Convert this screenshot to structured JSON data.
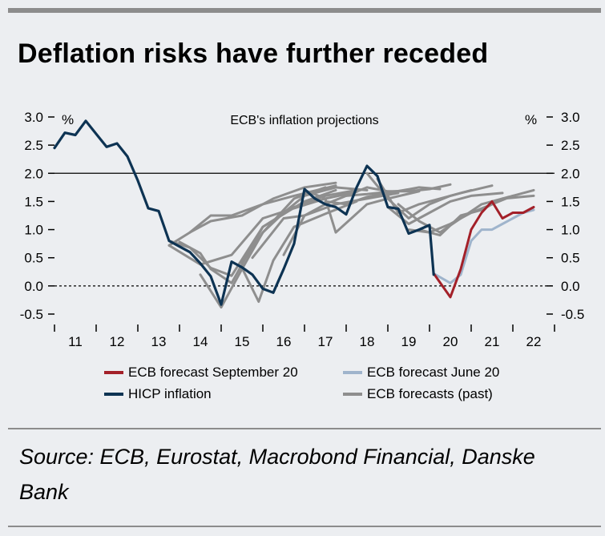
{
  "header": {
    "title": "Deflation risks have further receded"
  },
  "footer": {
    "source": "Source: ECB, Eurostat, Macrobond Financial, Danske Bank"
  },
  "chart_data": {
    "type": "line",
    "title": "ECB's inflation projections",
    "ylabel_left": "%",
    "ylabel_right": "%",
    "ylim": [
      -0.5,
      3.0
    ],
    "yticks": [
      3.0,
      2.5,
      2.0,
      1.5,
      1.0,
      0.5,
      0.0,
      -0.5
    ],
    "ytick_labels": [
      "3.0",
      "2.5",
      "2.0",
      "1.5",
      "1.0",
      "0.5",
      "0.0",
      "-0.5"
    ],
    "xlim": [
      2011.0,
      2023.0
    ],
    "xtick_labels": [
      "11",
      "12",
      "13",
      "14",
      "15",
      "16",
      "17",
      "18",
      "19",
      "20",
      "21",
      "22"
    ],
    "reference_lines": [
      {
        "name": "target-line",
        "y": 2.0,
        "style": "solid"
      },
      {
        "name": "zero-line",
        "y": 0.0,
        "style": "dashed"
      }
    ],
    "colors": {
      "hicp": "#0d3353",
      "sep20": "#a32029",
      "jun20": "#9fb4cc",
      "past": "#8e8e8e",
      "axis": "#000000"
    },
    "legend": [
      {
        "label": "ECB forecast September 20",
        "color_key": "sep20"
      },
      {
        "label": "ECB forecast June 20",
        "color_key": "jun20"
      },
      {
        "label": "HICP inflation",
        "color_key": "hicp"
      },
      {
        "label": "ECB forecasts (past)",
        "color_key": "past"
      }
    ],
    "series": [
      {
        "name": "HICP inflation",
        "role": "hicp",
        "x": [
          2011.0,
          2011.25,
          2011.5,
          2011.75,
          2012.0,
          2012.25,
          2012.5,
          2012.75,
          2013.0,
          2013.25,
          2013.5,
          2013.75,
          2014.0,
          2014.25,
          2014.5,
          2014.75,
          2015.0,
          2015.25,
          2015.5,
          2015.75,
          2016.0,
          2016.25,
          2016.5,
          2016.75,
          2017.0,
          2017.25,
          2017.5,
          2017.75,
          2018.0,
          2018.25,
          2018.5,
          2018.75,
          2019.0,
          2019.25,
          2019.5,
          2019.75,
          2020.0,
          2020.1
        ],
        "y": [
          2.45,
          2.72,
          2.68,
          2.93,
          2.7,
          2.47,
          2.53,
          2.3,
          1.87,
          1.38,
          1.33,
          0.8,
          0.7,
          0.6,
          0.4,
          0.17,
          -0.33,
          0.43,
          0.33,
          0.2,
          -0.05,
          -0.12,
          0.3,
          0.75,
          1.72,
          1.55,
          1.45,
          1.4,
          1.27,
          1.75,
          2.13,
          1.95,
          1.4,
          1.37,
          0.93,
          1.0,
          1.08,
          0.2
        ]
      },
      {
        "name": "ECB forecast (past) 1",
        "role": "past",
        "x": [
          2013.75,
          2014.25,
          2014.75,
          2015.25,
          2016.0,
          2016.75,
          2017.5,
          2018.25
        ],
        "y": [
          0.8,
          0.68,
          0.32,
          0.18,
          1.05,
          1.4,
          1.6,
          1.7
        ]
      },
      {
        "name": "ECB forecast (past) 2",
        "role": "past",
        "x": [
          2013.75,
          2014.5,
          2015.25,
          2016.0,
          2016.75,
          2017.5,
          2018.25
        ],
        "y": [
          0.72,
          0.38,
          0.55,
          1.2,
          1.38,
          1.55,
          1.67
        ]
      },
      {
        "name": "ECB forecast (past) 3",
        "role": "past",
        "x": [
          2014.0,
          2014.5,
          2014.75,
          2015.25,
          2016.0,
          2017.0,
          2017.75
        ],
        "y": [
          0.78,
          0.58,
          0.3,
          0.05,
          1.05,
          1.5,
          1.7
        ]
      },
      {
        "name": "ECB forecast (past) 4",
        "role": "past",
        "x": [
          2014.5,
          2015.0,
          2015.5,
          2016.0,
          2016.75,
          2017.5
        ],
        "y": [
          0.2,
          -0.38,
          0.3,
          0.95,
          1.55,
          1.75
        ]
      },
      {
        "name": "ECB forecast (past) 5",
        "role": "past",
        "x": [
          2014.25,
          2014.75,
          2015.25,
          2016.0,
          2016.75,
          2017.75
        ],
        "y": [
          0.95,
          1.25,
          1.25,
          1.45,
          1.6,
          1.78
        ]
      },
      {
        "name": "ECB forecast (past) 6",
        "role": "past",
        "x": [
          2013.75,
          2014.25,
          2014.75,
          2015.5,
          2016.25,
          2017.0,
          2017.75
        ],
        "y": [
          0.72,
          0.95,
          1.15,
          1.25,
          1.55,
          1.75,
          1.83
        ]
      },
      {
        "name": "ECB forecast (past) 7",
        "role": "past",
        "x": [
          2015.5,
          2015.9,
          2016.25,
          2016.75,
          2017.5,
          2018.25
        ],
        "y": [
          0.32,
          -0.28,
          0.45,
          1.05,
          1.28,
          1.5
        ]
      },
      {
        "name": "ECB forecast (past) 8",
        "role": "past",
        "x": [
          2015.5,
          2016.0,
          2016.5,
          2017.0,
          2017.75,
          2018.5
        ],
        "y": [
          0.4,
          0.95,
          1.3,
          1.6,
          1.75,
          1.7
        ]
      },
      {
        "name": "ECB forecast (past) 9",
        "role": "past",
        "x": [
          2015.75,
          2016.5,
          2017.0,
          2017.75,
          2018.5,
          2019.25
        ],
        "y": [
          0.5,
          1.2,
          1.25,
          1.45,
          1.55,
          1.65
        ]
      },
      {
        "name": "ECB forecast (past) 10",
        "role": "past",
        "x": [
          2016.5,
          2017.0,
          2017.5,
          2018.0,
          2018.5,
          2019.0,
          2019.5
        ],
        "y": [
          0.55,
          1.25,
          1.45,
          1.6,
          1.63,
          1.67,
          1.7
        ]
      },
      {
        "name": "ECB forecast (past) 11",
        "role": "past",
        "x": [
          2017.0,
          2017.5,
          2017.75,
          2018.5,
          2019.0,
          2019.75
        ],
        "y": [
          1.7,
          1.55,
          0.95,
          1.45,
          1.55,
          1.68
        ]
      },
      {
        "name": "ECB forecast (past) 12",
        "role": "past",
        "x": [
          2017.5,
          2018.0,
          2018.5,
          2019.0,
          2019.75,
          2020.25
        ],
        "y": [
          1.5,
          1.45,
          1.58,
          1.65,
          1.75,
          1.72
        ]
      },
      {
        "name": "ECB forecast (past) 13",
        "role": "past",
        "x": [
          2018.0,
          2018.5,
          2019.0,
          2019.5,
          2020.0,
          2020.5
        ],
        "y": [
          1.6,
          1.75,
          1.68,
          1.68,
          1.72,
          1.8
        ]
      },
      {
        "name": "ECB forecast (past) 14",
        "role": "past",
        "x": [
          2018.5,
          2019.0,
          2019.5,
          2020.0,
          2020.5,
          2021.0
        ],
        "y": [
          2.0,
          1.55,
          1.2,
          1.45,
          1.6,
          1.7
        ]
      },
      {
        "name": "ECB forecast (past) 15",
        "role": "past",
        "x": [
          2018.75,
          2019.25,
          2019.75,
          2020.25,
          2020.75,
          2021.5
        ],
        "y": [
          1.9,
          1.3,
          1.45,
          1.55,
          1.65,
          1.78
        ]
      },
      {
        "name": "ECB forecast (past) 16",
        "role": "past",
        "x": [
          2019.0,
          2019.5,
          2020.0,
          2020.5,
          2021.0,
          2021.75
        ],
        "y": [
          1.4,
          1.1,
          1.3,
          1.5,
          1.6,
          1.65
        ]
      },
      {
        "name": "ECB forecast (past) 17",
        "role": "past",
        "x": [
          2019.25,
          2019.75,
          2020.25,
          2020.75,
          2021.25,
          2022.0
        ],
        "y": [
          1.45,
          1.15,
          0.95,
          1.2,
          1.45,
          1.6
        ]
      },
      {
        "name": "ECB forecast (past) 18",
        "role": "past",
        "x": [
          2019.5,
          2020.0,
          2020.5,
          2021.0,
          2021.5,
          2022.0,
          2022.5
        ],
        "y": [
          1.0,
          0.95,
          1.1,
          1.3,
          1.45,
          1.6,
          1.7
        ]
      },
      {
        "name": "ECB forecast (past) 19",
        "role": "past",
        "x": [
          2019.75,
          2020.25,
          2020.75,
          2021.25,
          2021.75,
          2022.5
        ],
        "y": [
          1.0,
          0.9,
          1.25,
          1.35,
          1.55,
          1.6
        ]
      },
      {
        "name": "ECB forecast June 20",
        "role": "jun20",
        "x": [
          2020.1,
          2020.5,
          2020.75,
          2021.0,
          2021.25,
          2021.5,
          2021.75,
          2022.0,
          2022.25,
          2022.5
        ],
        "y": [
          0.22,
          0.05,
          0.2,
          0.8,
          1.0,
          1.0,
          1.1,
          1.2,
          1.3,
          1.35
        ]
      },
      {
        "name": "ECB forecast September 20",
        "role": "sep20",
        "x": [
          2020.1,
          2020.5,
          2020.75,
          2021.0,
          2021.25,
          2021.5,
          2021.75,
          2022.0,
          2022.25,
          2022.5
        ],
        "y": [
          0.22,
          -0.2,
          0.3,
          1.0,
          1.3,
          1.5,
          1.2,
          1.3,
          1.3,
          1.4
        ]
      }
    ]
  }
}
